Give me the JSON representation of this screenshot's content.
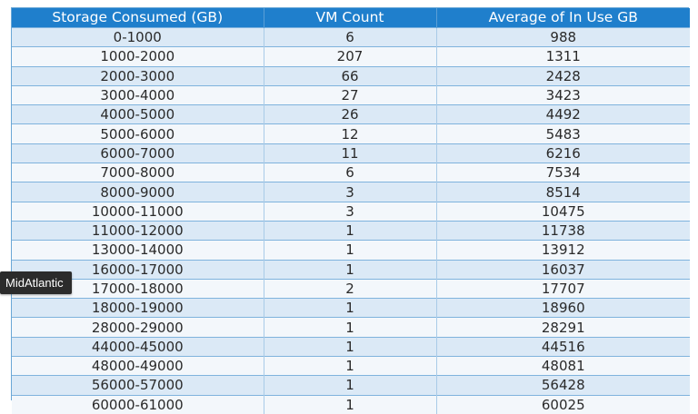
{
  "table": {
    "headers": [
      "Storage Consumed (GB)",
      "VM Count",
      "Average of In Use GB"
    ],
    "rows": [
      [
        "0-1000",
        "6",
        "988"
      ],
      [
        "1000-2000",
        "207",
        "1311"
      ],
      [
        "2000-3000",
        "66",
        "2428"
      ],
      [
        "3000-4000",
        "27",
        "3423"
      ],
      [
        "4000-5000",
        "26",
        "4492"
      ],
      [
        "5000-6000",
        "12",
        "5483"
      ],
      [
        "6000-7000",
        "11",
        "6216"
      ],
      [
        "7000-8000",
        "6",
        "7534"
      ],
      [
        "8000-9000",
        "3",
        "8514"
      ],
      [
        "10000-11000",
        "3",
        "10475"
      ],
      [
        "11000-12000",
        "1",
        "11738"
      ],
      [
        "13000-14000",
        "1",
        "13912"
      ],
      [
        "16000-17000",
        "1",
        "16037"
      ],
      [
        "17000-18000",
        "2",
        "17707"
      ],
      [
        "18000-19000",
        "1",
        "18960"
      ],
      [
        "28000-29000",
        "1",
        "28291"
      ],
      [
        "44000-45000",
        "1",
        "44516"
      ],
      [
        "48000-49000",
        "1",
        "48081"
      ],
      [
        "56000-57000",
        "1",
        "56428"
      ],
      [
        "60000-61000",
        "1",
        "60025"
      ]
    ]
  },
  "tooltip": {
    "text": "MidAtlantic"
  },
  "colors": {
    "header_bg": "#1f7fcc",
    "row_odd": "#dbe9f6",
    "row_even": "#f3f7fb",
    "tooltip_bg": "#2b2b2b"
  }
}
